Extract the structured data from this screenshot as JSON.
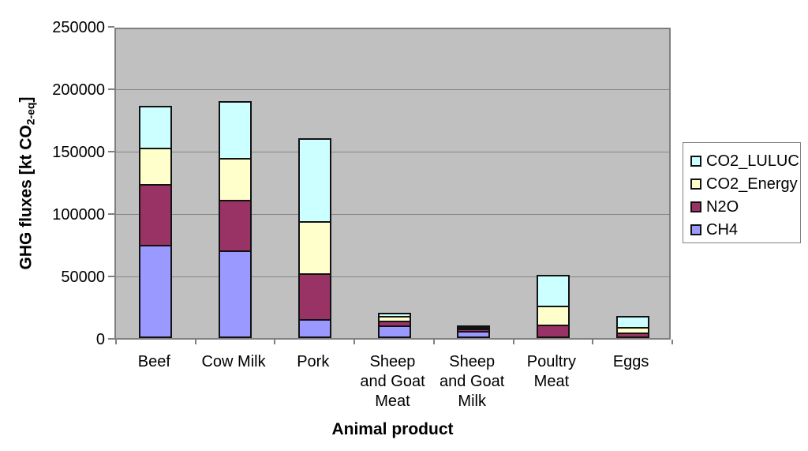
{
  "chart_data": {
    "type": "bar",
    "stacked": true,
    "xlabel": "Animal product",
    "ylabel": {
      "prefix": "GHG fluxes [kt CO",
      "subscript": "2-eq",
      "suffix": "]"
    },
    "ylim": [
      0,
      250000
    ],
    "yticks": [
      0,
      50000,
      100000,
      150000,
      200000,
      250000
    ],
    "grid": true,
    "plot_bg_color": "#c0c0c0",
    "gridline_color": "#868686",
    "categories": [
      "Beef",
      "Cow Milk",
      "Pork",
      "Sheep and Goat Meat",
      "Sheep and Goat Milk",
      "Poultry Meat",
      "Eggs"
    ],
    "category_label_lines": [
      [
        "Beef"
      ],
      [
        "Cow Milk"
      ],
      [
        "Pork"
      ],
      [
        "Sheep",
        "and Goat",
        "Meat"
      ],
      [
        "Sheep",
        "and Goat",
        "Milk"
      ],
      [
        "Poultry",
        "Meat"
      ],
      [
        "Eggs"
      ]
    ],
    "series": [
      {
        "name": "CH4",
        "color": "#9999ff",
        "values": [
          75000,
          70000,
          15000,
          10000,
          6000,
          0,
          0
        ]
      },
      {
        "name": "N2O",
        "color": "#993366",
        "values": [
          50000,
          42000,
          38000,
          5500,
          3000,
          11000,
          4500
        ]
      },
      {
        "name": "CO2_Energy",
        "color": "#ffffcc",
        "values": [
          30000,
          35000,
          43500,
          4500,
          2500,
          16000,
          5500
        ]
      },
      {
        "name": "CO2_LULUC",
        "color": "#ccffff",
        "values": [
          35000,
          46500,
          67500,
          4000,
          1500,
          26000,
          10000
        ]
      }
    ],
    "legend": {
      "position": "right",
      "entries": [
        "CO2_LULUC",
        "CO2_Energy",
        "N2O",
        "CH4"
      ]
    }
  }
}
